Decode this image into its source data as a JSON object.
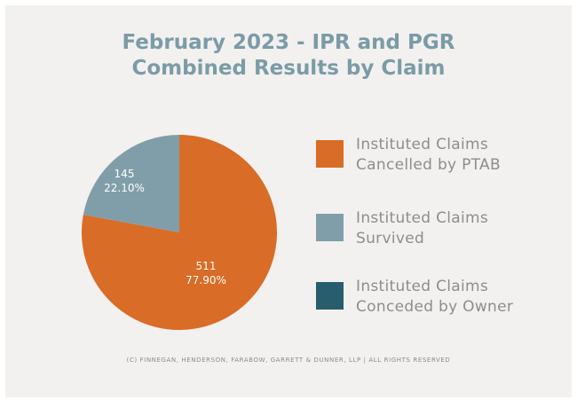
{
  "chart_data": {
    "type": "pie",
    "title_lines": [
      "February 2023 - IPR and PGR",
      "Combined Results by Claim"
    ],
    "slices": [
      {
        "label": "Instituted Claims Cancelled by PTAB",
        "count": "511",
        "percent": "77.90%",
        "value": 77.9,
        "color": "#d96c27"
      },
      {
        "label": "Instituted Claims Survived",
        "count": "145",
        "percent": "22.10%",
        "value": 22.1,
        "color": "#809ea9"
      },
      {
        "label": "Instituted Claims Conceded by Owner",
        "count": "",
        "percent": "",
        "value": 0,
        "color": "#275d6d"
      }
    ],
    "legend_position": "right"
  },
  "legend": [
    {
      "line1": "Instituted Claims",
      "line2": "Cancelled by PTAB",
      "color": "#d96c27"
    },
    {
      "line1": "Instituted Claims",
      "line2": "Survived",
      "color": "#809ea9"
    },
    {
      "line1": "Instituted Claims",
      "line2": "Conceded by Owner",
      "color": "#275d6d"
    }
  ],
  "copyright": "(C) FINNEGAN, HENDERSON, FARABOW, GARRETT & DUNNER, LLP | ALL RIGHTS RESERVED"
}
